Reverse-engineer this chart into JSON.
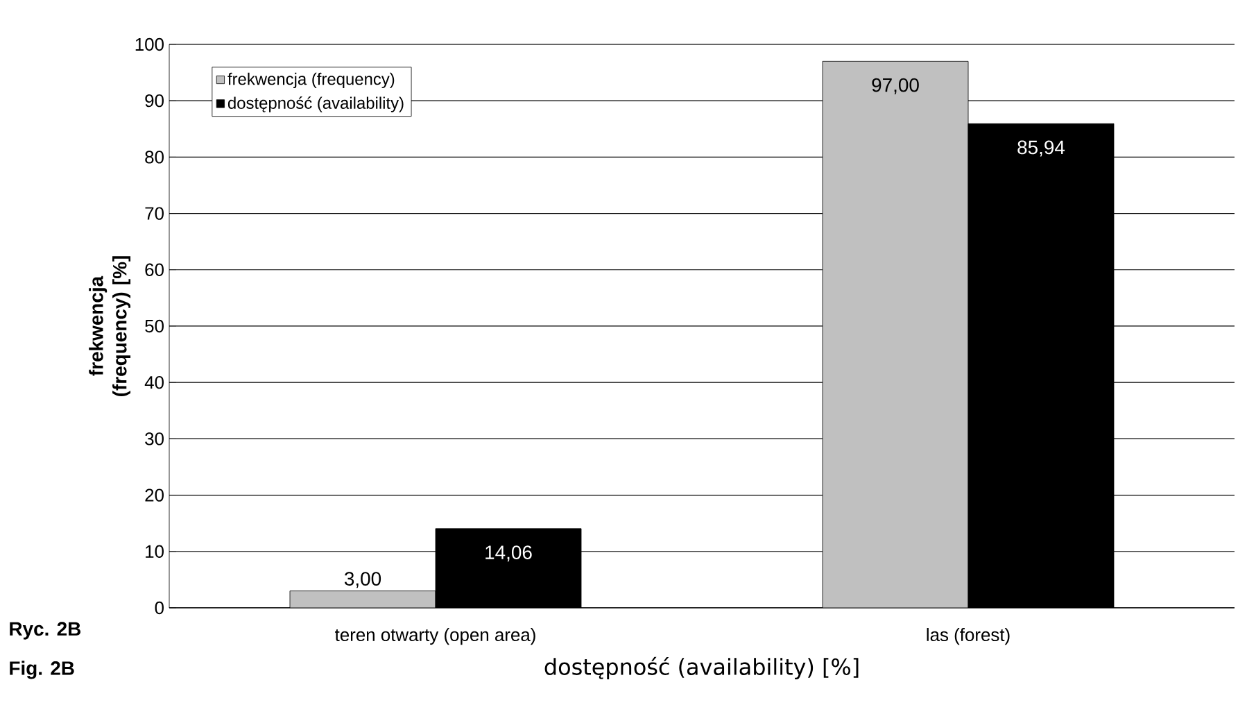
{
  "chart_data": {
    "type": "bar",
    "ylabel": "frekwencja (frequency) [%]",
    "xlabel": "dostępność (availability) [%]",
    "categories": [
      "teren otwarty (open area)",
      "las (forest)"
    ],
    "series": [
      {
        "name": "frekwencja (frequency)",
        "color": "#c0c0c0",
        "values": [
          3.0,
          97.0
        ],
        "value_labels": [
          "3,00",
          "97,00"
        ]
      },
      {
        "name": "dostępność (availability)",
        "color": "#000000",
        "values": [
          14.06,
          85.94
        ],
        "value_labels": [
          "14,06",
          "85,94"
        ]
      }
    ],
    "ylim": [
      0,
      100
    ],
    "yticks": [
      0,
      10,
      20,
      30,
      40,
      50,
      60,
      70,
      80,
      90,
      100
    ],
    "grid": "y",
    "legend": "top left",
    "annotations": [
      "Ryc. 2B",
      "Fig. 2B"
    ]
  }
}
